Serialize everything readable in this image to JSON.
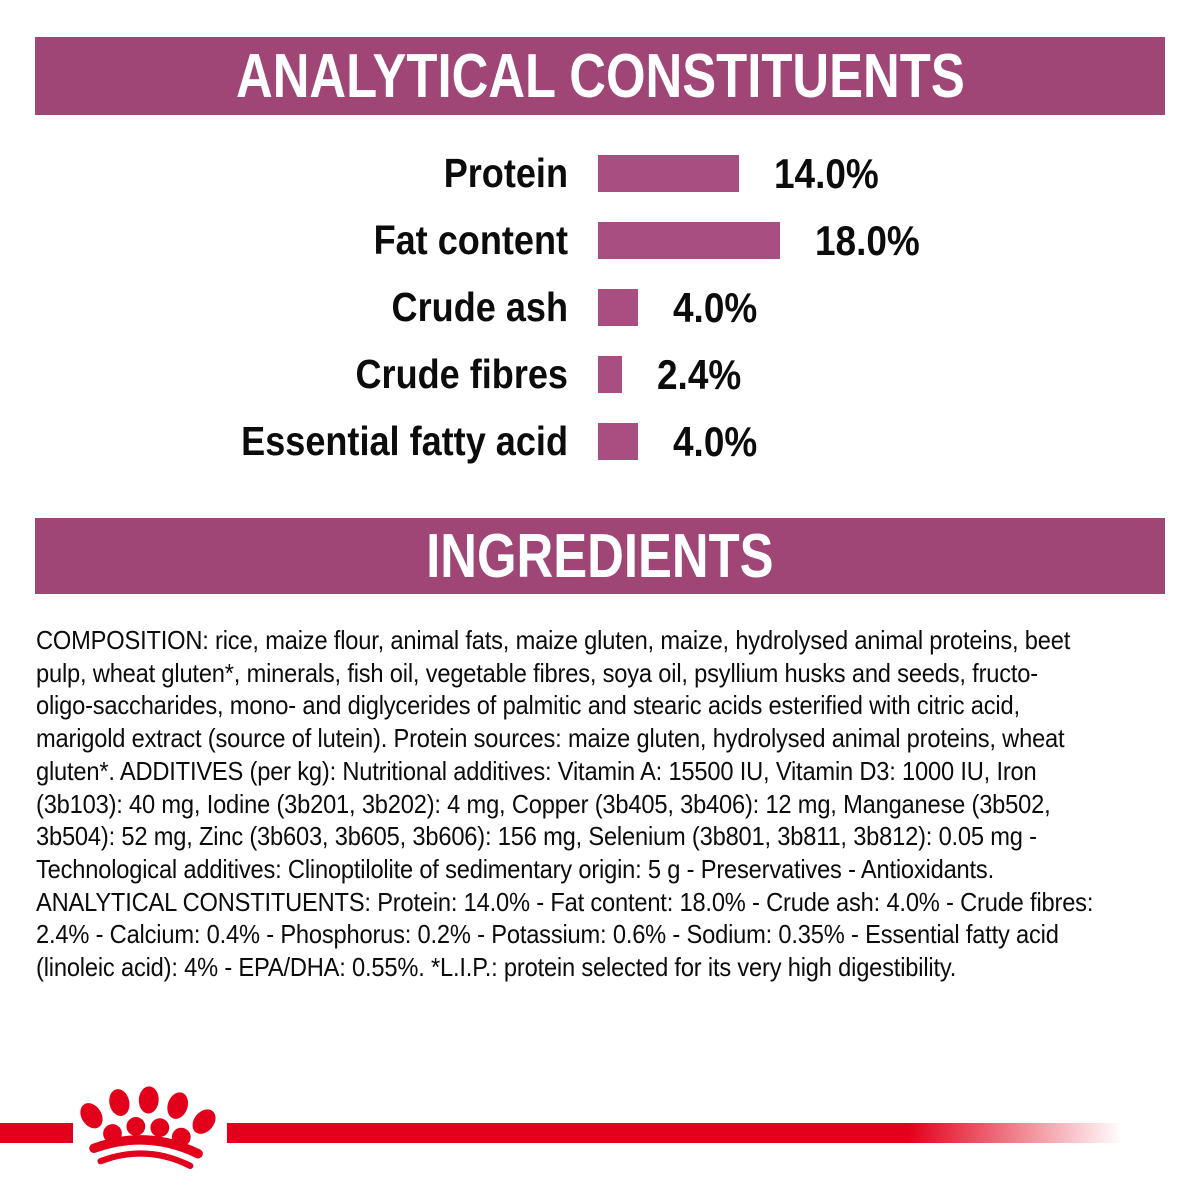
{
  "colors": {
    "banner": "#9f4677",
    "bar": "#a84e80",
    "logo_red": "#e2001a",
    "text": "#0c0c0c",
    "background": "#ffffff"
  },
  "sections": {
    "analytical_title": "ANALYTICAL CONSTITUENTS",
    "ingredients_title": "INGREDIENTS"
  },
  "chart_data": {
    "type": "bar",
    "orientation": "horizontal",
    "title": "ANALYTICAL CONSTITUENTS",
    "categories": [
      "Protein",
      "Fat content",
      "Crude ash",
      "Crude fibres",
      "Essential fatty acid"
    ],
    "values": [
      14.0,
      18.0,
      4.0,
      2.4,
      4.0
    ],
    "value_labels": [
      "14.0%",
      "18.0%",
      "4.0%",
      "2.4%",
      "4.0%"
    ],
    "unit": "%",
    "xlim": [
      0,
      20
    ],
    "grid": false,
    "legend": false,
    "bar_color": "#a84e80"
  },
  "ingredients_text": "COMPOSITION: rice, maize flour, animal fats, maize gluten, maize, hydrolysed animal proteins, beet\npulp, wheat gluten*, minerals, fish oil, vegetable fibres, soya oil, psyllium husks and seeds, fructo-\noligo-saccharides, mono- and diglycerides of palmitic and stearic acids esterified with citric acid,\nmarigold extract (source of lutein). Protein sources: maize gluten, hydrolysed animal proteins, wheat\ngluten*. ADDITIVES (per kg): Nutritional additives: Vitamin A: 15500 IU, Vitamin D3: 1000 IU, Iron\n(3b103): 40 mg, Iodine (3b201, 3b202): 4 mg, Copper (3b405, 3b406): 12 mg, Manganese (3b502,\n3b504): 52 mg, Zinc (3b603, 3b605, 3b606): 156 mg, Selenium (3b801, 3b811, 3b812): 0.05 mg -\nTechnological additives: Clinoptilolite of sedimentary origin: 5 g - Preservatives - Antioxidants.\nANALYTICAL CONSTITUENTS: Protein: 14.0% - Fat content: 18.0% - Crude ash: 4.0% - Crude fibres:\n2.4% - Calcium: 0.4% - Phosphorus: 0.2% - Potassium: 0.6% - Sodium: 0.35% - Essential fatty acid\n(linoleic acid): 4% - EPA/DHA: 0.55%. *L.I.P.: protein selected for its very high digestibility.",
  "logo": {
    "name": "royal-canin-crown",
    "color": "#e2001a"
  }
}
